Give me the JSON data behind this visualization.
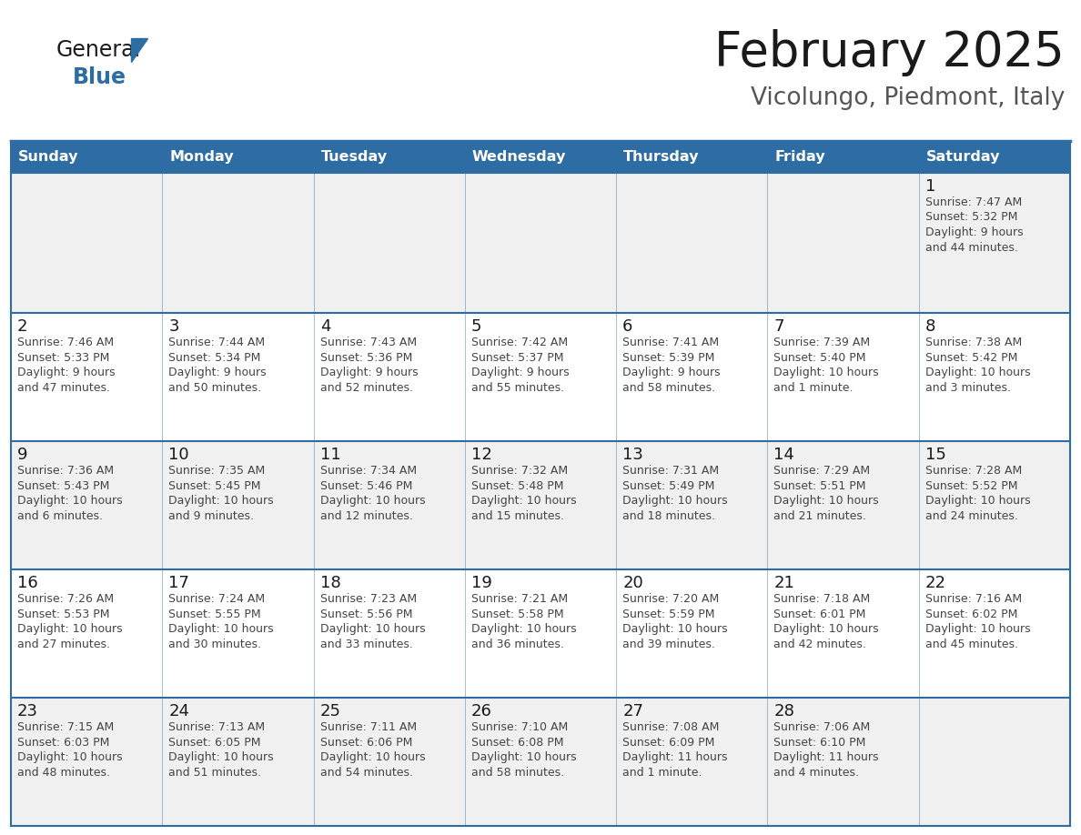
{
  "title": "February 2025",
  "subtitle": "Vicolungo, Piedmont, Italy",
  "header_bg": "#2E6DA4",
  "header_text": "#FFFFFF",
  "cell_bg_odd": "#F0F0F0",
  "cell_bg_even": "#FFFFFF",
  "border_color": "#2E6DA4",
  "day_headers": [
    "Sunday",
    "Monday",
    "Tuesday",
    "Wednesday",
    "Thursday",
    "Friday",
    "Saturday"
  ],
  "title_color": "#1a1a1a",
  "subtitle_color": "#555555",
  "day_number_color": "#1a1a1a",
  "cell_text_color": "#444444",
  "logo_general_color": "#1a1a1a",
  "logo_blue_color": "#2E6DA4",
  "calendar": [
    [
      null,
      null,
      null,
      null,
      null,
      null,
      {
        "day": "1",
        "sunrise": "7:47 AM",
        "sunset": "5:32 PM",
        "daylight": "9 hours",
        "daylight2": "and 44 minutes."
      }
    ],
    [
      {
        "day": "2",
        "sunrise": "7:46 AM",
        "sunset": "5:33 PM",
        "daylight": "9 hours",
        "daylight2": "and 47 minutes."
      },
      {
        "day": "3",
        "sunrise": "7:44 AM",
        "sunset": "5:34 PM",
        "daylight": "9 hours",
        "daylight2": "and 50 minutes."
      },
      {
        "day": "4",
        "sunrise": "7:43 AM",
        "sunset": "5:36 PM",
        "daylight": "9 hours",
        "daylight2": "and 52 minutes."
      },
      {
        "day": "5",
        "sunrise": "7:42 AM",
        "sunset": "5:37 PM",
        "daylight": "9 hours",
        "daylight2": "and 55 minutes."
      },
      {
        "day": "6",
        "sunrise": "7:41 AM",
        "sunset": "5:39 PM",
        "daylight": "9 hours",
        "daylight2": "and 58 minutes."
      },
      {
        "day": "7",
        "sunrise": "7:39 AM",
        "sunset": "5:40 PM",
        "daylight": "10 hours",
        "daylight2": "and 1 minute."
      },
      {
        "day": "8",
        "sunrise": "7:38 AM",
        "sunset": "5:42 PM",
        "daylight": "10 hours",
        "daylight2": "and 3 minutes."
      }
    ],
    [
      {
        "day": "9",
        "sunrise": "7:36 AM",
        "sunset": "5:43 PM",
        "daylight": "10 hours",
        "daylight2": "and 6 minutes."
      },
      {
        "day": "10",
        "sunrise": "7:35 AM",
        "sunset": "5:45 PM",
        "daylight": "10 hours",
        "daylight2": "and 9 minutes."
      },
      {
        "day": "11",
        "sunrise": "7:34 AM",
        "sunset": "5:46 PM",
        "daylight": "10 hours",
        "daylight2": "and 12 minutes."
      },
      {
        "day": "12",
        "sunrise": "7:32 AM",
        "sunset": "5:48 PM",
        "daylight": "10 hours",
        "daylight2": "and 15 minutes."
      },
      {
        "day": "13",
        "sunrise": "7:31 AM",
        "sunset": "5:49 PM",
        "daylight": "10 hours",
        "daylight2": "and 18 minutes."
      },
      {
        "day": "14",
        "sunrise": "7:29 AM",
        "sunset": "5:51 PM",
        "daylight": "10 hours",
        "daylight2": "and 21 minutes."
      },
      {
        "day": "15",
        "sunrise": "7:28 AM",
        "sunset": "5:52 PM",
        "daylight": "10 hours",
        "daylight2": "and 24 minutes."
      }
    ],
    [
      {
        "day": "16",
        "sunrise": "7:26 AM",
        "sunset": "5:53 PM",
        "daylight": "10 hours",
        "daylight2": "and 27 minutes."
      },
      {
        "day": "17",
        "sunrise": "7:24 AM",
        "sunset": "5:55 PM",
        "daylight": "10 hours",
        "daylight2": "and 30 minutes."
      },
      {
        "day": "18",
        "sunrise": "7:23 AM",
        "sunset": "5:56 PM",
        "daylight": "10 hours",
        "daylight2": "and 33 minutes."
      },
      {
        "day": "19",
        "sunrise": "7:21 AM",
        "sunset": "5:58 PM",
        "daylight": "10 hours",
        "daylight2": "and 36 minutes."
      },
      {
        "day": "20",
        "sunrise": "7:20 AM",
        "sunset": "5:59 PM",
        "daylight": "10 hours",
        "daylight2": "and 39 minutes."
      },
      {
        "day": "21",
        "sunrise": "7:18 AM",
        "sunset": "6:01 PM",
        "daylight": "10 hours",
        "daylight2": "and 42 minutes."
      },
      {
        "day": "22",
        "sunrise": "7:16 AM",
        "sunset": "6:02 PM",
        "daylight": "10 hours",
        "daylight2": "and 45 minutes."
      }
    ],
    [
      {
        "day": "23",
        "sunrise": "7:15 AM",
        "sunset": "6:03 PM",
        "daylight": "10 hours",
        "daylight2": "and 48 minutes."
      },
      {
        "day": "24",
        "sunrise": "7:13 AM",
        "sunset": "6:05 PM",
        "daylight": "10 hours",
        "daylight2": "and 51 minutes."
      },
      {
        "day": "25",
        "sunrise": "7:11 AM",
        "sunset": "6:06 PM",
        "daylight": "10 hours",
        "daylight2": "and 54 minutes."
      },
      {
        "day": "26",
        "sunrise": "7:10 AM",
        "sunset": "6:08 PM",
        "daylight": "10 hours",
        "daylight2": "and 58 minutes."
      },
      {
        "day": "27",
        "sunrise": "7:08 AM",
        "sunset": "6:09 PM",
        "daylight": "11 hours",
        "daylight2": "and 1 minute."
      },
      {
        "day": "28",
        "sunrise": "7:06 AM",
        "sunset": "6:10 PM",
        "daylight": "11 hours",
        "daylight2": "and 4 minutes."
      },
      null
    ]
  ]
}
